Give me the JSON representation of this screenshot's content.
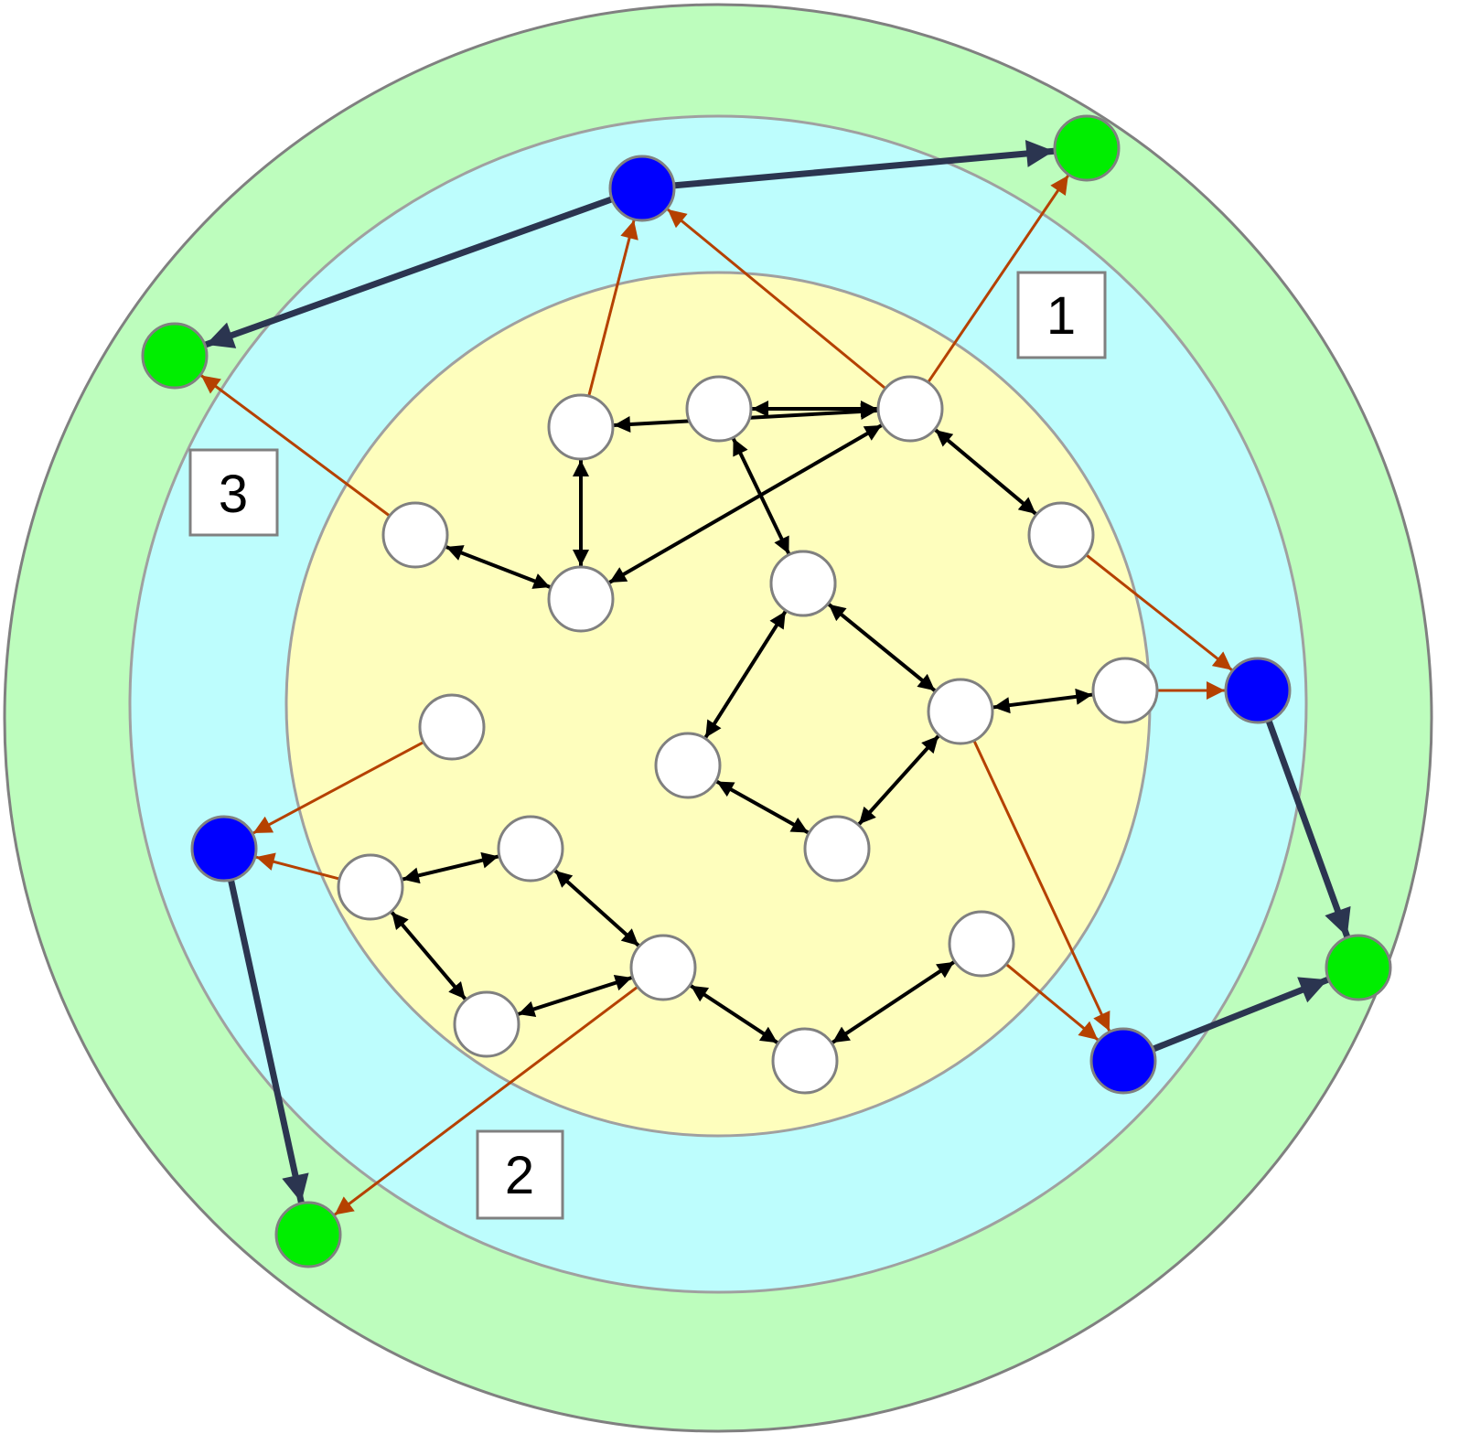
{
  "diagram": {
    "colors": {
      "outer_ring": "#bdfdbd",
      "middle_ring": "#bdfdfd",
      "inner_core": "#fefebd",
      "ring_stroke": "#808080",
      "node_white": "#ffffff",
      "node_blue": "#0000ff",
      "node_green": "#00ee00",
      "node_stroke": "#808080",
      "edge_black": "#000000",
      "edge_orange": "#b54100",
      "edge_navy": "#2b3550"
    },
    "boxes": [
      {
        "id": "box-1",
        "text": "1"
      },
      {
        "id": "box-2",
        "text": "2"
      },
      {
        "id": "box-3",
        "text": "3"
      }
    ],
    "nodes": [
      {
        "id": "w1",
        "kind": "white"
      },
      {
        "id": "w2",
        "kind": "white"
      },
      {
        "id": "w3",
        "kind": "white"
      },
      {
        "id": "w4",
        "kind": "white"
      },
      {
        "id": "w5",
        "kind": "white"
      },
      {
        "id": "w6",
        "kind": "white"
      },
      {
        "id": "w7",
        "kind": "white"
      },
      {
        "id": "w8",
        "kind": "white"
      },
      {
        "id": "w9",
        "kind": "white"
      },
      {
        "id": "w10",
        "kind": "white"
      },
      {
        "id": "w11",
        "kind": "white"
      },
      {
        "id": "w12",
        "kind": "white"
      },
      {
        "id": "w13",
        "kind": "white"
      },
      {
        "id": "w14",
        "kind": "white"
      },
      {
        "id": "w15",
        "kind": "white"
      },
      {
        "id": "w16",
        "kind": "white"
      },
      {
        "id": "w17",
        "kind": "white"
      },
      {
        "id": "w18",
        "kind": "white"
      },
      {
        "id": "w19",
        "kind": "white"
      },
      {
        "id": "b1",
        "kind": "blue"
      },
      {
        "id": "b2",
        "kind": "blue"
      },
      {
        "id": "b3",
        "kind": "blue"
      },
      {
        "id": "b4",
        "kind": "blue"
      },
      {
        "id": "g1",
        "kind": "green"
      },
      {
        "id": "g2",
        "kind": "green"
      },
      {
        "id": "g3",
        "kind": "green"
      },
      {
        "id": "g4",
        "kind": "green"
      }
    ],
    "edges": [
      {
        "from": "w2",
        "to": "w3",
        "type": "bidirectional"
      },
      {
        "from": "w2",
        "to": "w4",
        "type": "bidirectional"
      },
      {
        "from": "w3",
        "to": "w4",
        "type": "bidirectional"
      },
      {
        "from": "w4",
        "to": "w5",
        "type": "bidirectional"
      },
      {
        "from": "w6",
        "to": "w7",
        "type": "bidirectional"
      },
      {
        "from": "w7",
        "to": "w9",
        "type": "bidirectional"
      },
      {
        "from": "w6",
        "to": "w8",
        "type": "bidirectional"
      },
      {
        "from": "w6",
        "to": "w10",
        "type": "bidirectional"
      },
      {
        "from": "w8",
        "to": "w11",
        "type": "bidirectional"
      },
      {
        "from": "w8",
        "to": "w12",
        "type": "bidirectional"
      },
      {
        "from": "w11",
        "to": "w13",
        "type": "bidirectional"
      },
      {
        "from": "w12",
        "to": "w13",
        "type": "bidirectional"
      },
      {
        "from": "w14",
        "to": "w15",
        "type": "bidirectional"
      },
      {
        "from": "w14",
        "to": "w16",
        "type": "bidirectional"
      },
      {
        "from": "w15",
        "to": "w17",
        "type": "bidirectional"
      },
      {
        "from": "w16",
        "to": "w17",
        "type": "bidirectional"
      },
      {
        "from": "w17",
        "to": "w18",
        "type": "bidirectional"
      },
      {
        "from": "w18",
        "to": "w19",
        "type": "bidirectional"
      },
      {
        "from": "w12",
        "to": "w11",
        "type": "bidirectional"
      },
      {
        "from": "w1",
        "to": "b1",
        "type": "directed"
      },
      {
        "from": "w3",
        "to": "g1",
        "type": "directed"
      },
      {
        "from": "w7",
        "to": "b1",
        "type": "directed"
      },
      {
        "from": "w7",
        "to": "g2",
        "type": "directed"
      },
      {
        "from": "w9",
        "to": "b2",
        "type": "directed"
      },
      {
        "from": "w10",
        "to": "b2",
        "type": "directed"
      },
      {
        "from": "w11",
        "to": "b4",
        "type": "directed"
      },
      {
        "from": "w5",
        "to": "b3",
        "type": "directed"
      },
      {
        "from": "w14",
        "to": "b3",
        "type": "directed"
      },
      {
        "from": "w17",
        "to": "g4",
        "type": "directed"
      },
      {
        "from": "w19",
        "to": "b4",
        "type": "directed"
      },
      {
        "from": "b1",
        "to": "g2",
        "type": "primary"
      },
      {
        "from": "b1",
        "to": "g1",
        "type": "primary"
      },
      {
        "from": "b2",
        "to": "g3",
        "type": "primary"
      },
      {
        "from": "b4",
        "to": "g3",
        "type": "primary"
      },
      {
        "from": "b3",
        "to": "g4",
        "type": "primary"
      }
    ]
  }
}
